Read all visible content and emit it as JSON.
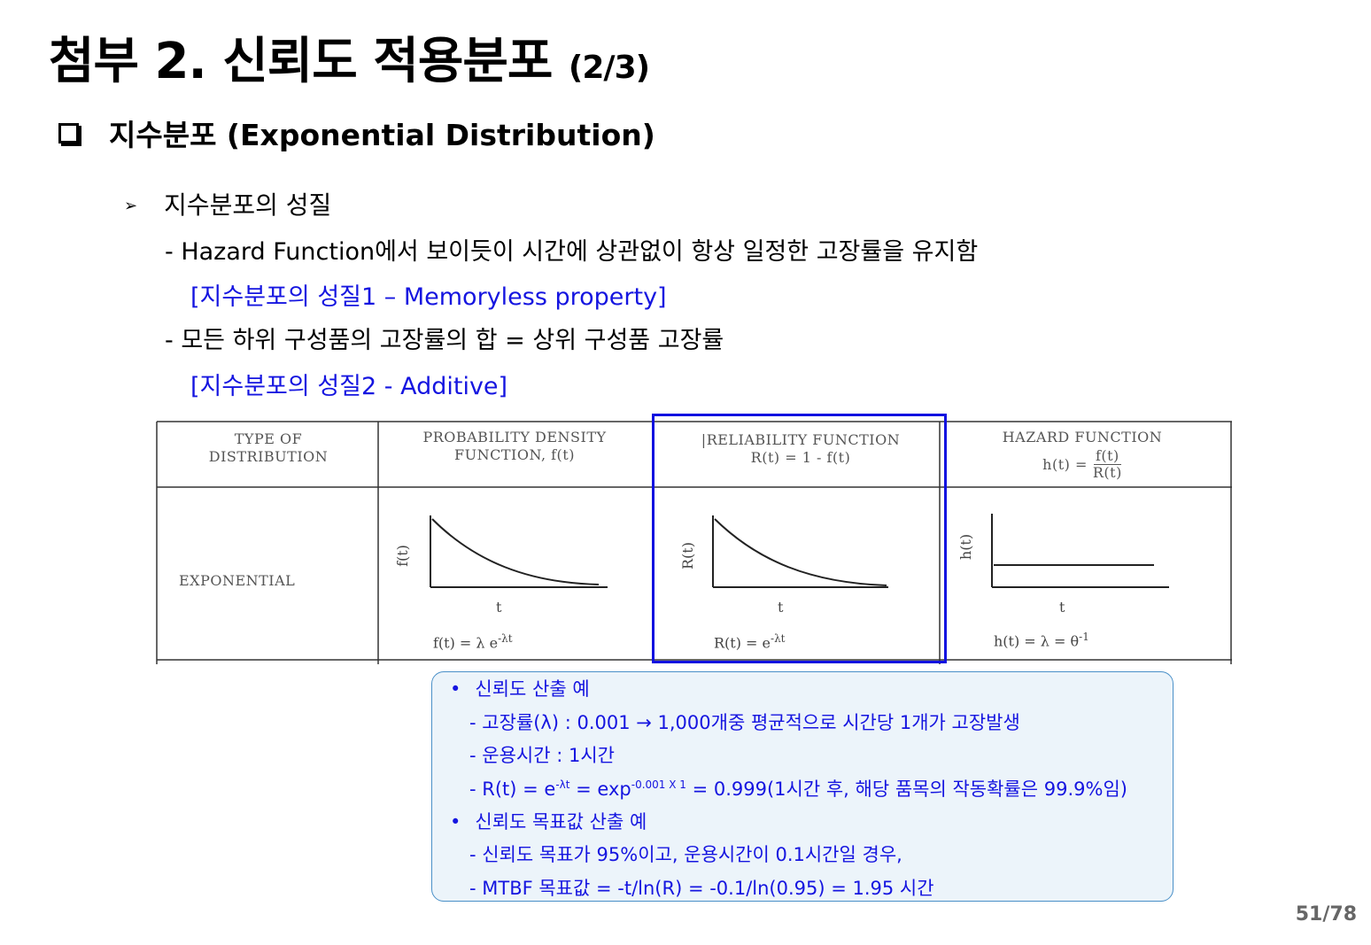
{
  "title": {
    "main": "첨부 2. 신뢰도 적용분포",
    "suffix": "(2/3)"
  },
  "section": {
    "label": "지수분포 (Exponential Distribution)"
  },
  "properties": {
    "heading": "지수분포의 성질",
    "line1": "- Hazard Function에서 보이듯이 시간에 상관없이 항상 일정한 고장률을 유지함",
    "note1": "[지수분포의 성질1 – Memoryless property]",
    "line2": "- 모든 하위 구성품의 고장률의 합 = 상위 구성품 고장률",
    "note2": "[지수분포의 성질2 - Additive]"
  },
  "table": {
    "headers": {
      "type_line1": "TYPE OF",
      "type_line2": "DISTRIBUTION",
      "pdf_line1": "PROBABILITY DENSITY",
      "pdf_line2": "FUNCTION, f(t)",
      "rel_line1": "|RELIABILITY FUNCTION",
      "rel_line2": "R(t)  =  1 - f(t)",
      "haz_line1": "HAZARD FUNCTION",
      "haz_prefix": "h(t) =",
      "haz_num": "f(t)",
      "haz_den": "R(t)"
    },
    "row_label": "EXPONENTIAL",
    "pdf": {
      "ylabel": "f(t)",
      "xlabel": "t",
      "formula": "f(t)  =  λ e",
      "formula_sup": "-λt"
    },
    "rel": {
      "ylabel": "R(t)",
      "xlabel": "t",
      "formula": "R(t)  = e",
      "formula_sup": "-λt"
    },
    "haz": {
      "ylabel": "h(t)",
      "xlabel": "t",
      "formula": "h(t)  = λ  = θ",
      "formula_sup": "-1"
    },
    "highlight_color": "#1010e0"
  },
  "callout": {
    "b1": "신뢰도 산출 예",
    "b1_l1": "- 고장률(λ) : 0.001 → 1,000개중 평균적으로 시간당 1개가 고장발생",
    "b1_l2": "- 운용시간 : 1시간",
    "b1_l3_a": "- R(t) = e",
    "b1_l3_sup1": "-λt",
    "b1_l3_b": " = exp",
    "b1_l3_sup2": "-0.001 X 1",
    "b1_l3_c": " = 0.999(1시간 후, 해당 품목의 작동확률은 99.9%임)",
    "b2": "신뢰도 목표값 산출 예",
    "b2_l1": "- 신뢰도 목표가 95%이고, 운용시간이 0.1시간일 경우,",
    "b2_l2": "- MTBF 목표값 = -t/ln(R) = -0.1/ln(0.95) = 1.95 시간"
  },
  "page": {
    "number": "51/78"
  }
}
